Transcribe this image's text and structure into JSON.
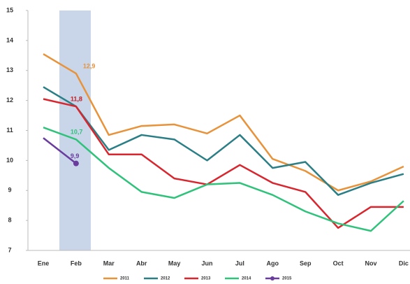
{
  "chart_data": {
    "type": "line",
    "categories": [
      "Ene",
      "Feb",
      "Mar",
      "Abr",
      "May",
      "Jun",
      "Jul",
      "Ago",
      "Sep",
      "Oct",
      "Nov",
      "Dic"
    ],
    "series": [
      {
        "name": "2011",
        "color": "#e8923a",
        "values": [
          13.55,
          12.9,
          10.85,
          11.15,
          11.2,
          10.9,
          11.5,
          10.05,
          9.65,
          9.0,
          9.3,
          9.8
        ],
        "value_labels": [
          null,
          "12,9",
          null,
          null,
          null,
          null,
          null,
          null,
          null,
          null,
          null,
          null
        ]
      },
      {
        "name": "2012",
        "color": "#2a7f86",
        "values": [
          12.45,
          11.8,
          10.35,
          10.85,
          10.7,
          10.0,
          10.85,
          9.75,
          9.95,
          8.85,
          9.25,
          9.55
        ],
        "value_labels": [
          null,
          "11,8",
          null,
          null,
          null,
          null,
          null,
          null,
          null,
          null,
          null,
          null
        ]
      },
      {
        "name": "2013",
        "color": "#d9262e",
        "values": [
          12.05,
          11.8,
          10.2,
          10.2,
          9.4,
          9.2,
          9.85,
          9.25,
          8.95,
          7.75,
          8.45,
          8.45
        ],
        "value_labels": [
          null,
          "11,8",
          null,
          null,
          null,
          null,
          null,
          null,
          null,
          null,
          null,
          null
        ]
      },
      {
        "name": "2014",
        "color": "#2ec27a",
        "values": [
          11.1,
          10.7,
          9.75,
          8.95,
          8.75,
          9.2,
          9.25,
          8.85,
          8.3,
          7.9,
          7.65,
          8.65
        ],
        "value_labels": [
          null,
          "10,7",
          null,
          null,
          null,
          null,
          null,
          null,
          null,
          null,
          null,
          null
        ]
      },
      {
        "name": "2015",
        "color": "#6a3c9e",
        "values": [
          10.75,
          9.9,
          null,
          null,
          null,
          null,
          null,
          null,
          null,
          null,
          null,
          null
        ],
        "value_labels": [
          null,
          "9,9",
          null,
          null,
          null,
          null,
          null,
          null,
          null,
          null,
          null,
          null
        ]
      }
    ],
    "ylim": [
      7,
      15
    ],
    "yticks": [
      7,
      8,
      9,
      10,
      11,
      12,
      13,
      14,
      15
    ],
    "grid": false
  }
}
